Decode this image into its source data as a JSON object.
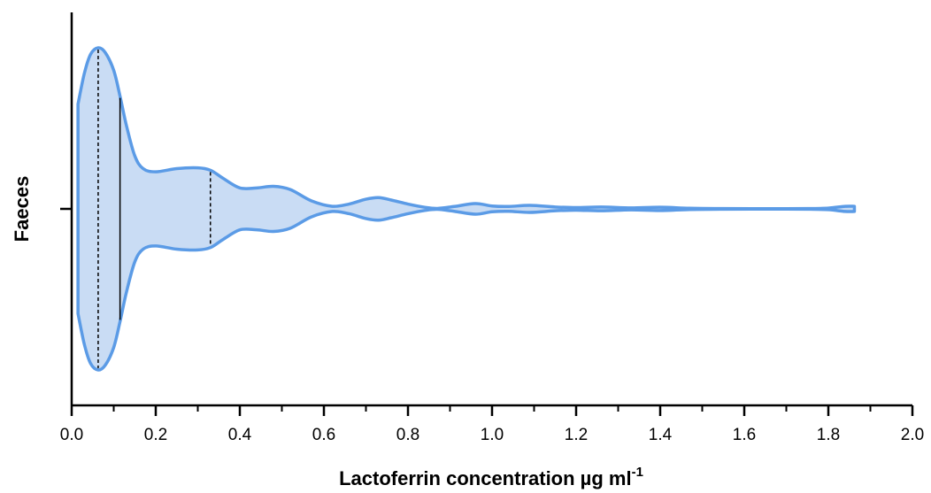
{
  "chart_data": {
    "type": "violin",
    "title": "",
    "xlabel": "Lactoferrin concentration µg ml",
    "xlabel_superscript": "-1",
    "ylabel": "Faeces",
    "xlim": [
      0.0,
      2.0
    ],
    "x_ticks": [
      "0.0",
      "0.2",
      "0.4",
      "0.6",
      "0.8",
      "1.0",
      "1.2",
      "1.4",
      "1.6",
      "1.8",
      "2.0"
    ],
    "y_categories": [
      "Faeces"
    ],
    "grid": false,
    "colors": {
      "fill": "#c9dcf4",
      "outline": "#5b9be6",
      "median_line": "#000000",
      "quartile_line": "#000000"
    },
    "series": [
      {
        "category": "Faeces",
        "min": 0.015,
        "max": 1.862,
        "median": 0.115,
        "q1": 0.063,
        "q3": 0.33,
        "density_profile": [
          [
            0.015,
            0.65
          ],
          [
            0.03,
            0.84
          ],
          [
            0.045,
            0.96
          ],
          [
            0.063,
            1.0
          ],
          [
            0.08,
            0.97
          ],
          [
            0.1,
            0.86
          ],
          [
            0.115,
            0.7
          ],
          [
            0.13,
            0.52
          ],
          [
            0.15,
            0.33
          ],
          [
            0.17,
            0.25
          ],
          [
            0.2,
            0.23
          ],
          [
            0.25,
            0.25
          ],
          [
            0.3,
            0.255
          ],
          [
            0.33,
            0.24
          ],
          [
            0.36,
            0.19
          ],
          [
            0.4,
            0.13
          ],
          [
            0.44,
            0.13
          ],
          [
            0.48,
            0.14
          ],
          [
            0.52,
            0.12
          ],
          [
            0.57,
            0.05
          ],
          [
            0.62,
            0.016
          ],
          [
            0.66,
            0.03
          ],
          [
            0.7,
            0.06
          ],
          [
            0.73,
            0.07
          ],
          [
            0.76,
            0.055
          ],
          [
            0.8,
            0.03
          ],
          [
            0.84,
            0.01
          ],
          [
            0.87,
            0.003
          ],
          [
            0.91,
            0.015
          ],
          [
            0.96,
            0.033
          ],
          [
            1.0,
            0.018
          ],
          [
            1.04,
            0.015
          ],
          [
            1.09,
            0.022
          ],
          [
            1.15,
            0.012
          ],
          [
            1.2,
            0.008
          ],
          [
            1.26,
            0.012
          ],
          [
            1.33,
            0.006
          ],
          [
            1.4,
            0.01
          ],
          [
            1.47,
            0.004
          ],
          [
            1.55,
            0.002
          ],
          [
            1.65,
            0.0015
          ],
          [
            1.75,
            0.002
          ],
          [
            1.8,
            0.005
          ],
          [
            1.84,
            0.016
          ],
          [
            1.862,
            0.016
          ]
        ]
      }
    ]
  }
}
